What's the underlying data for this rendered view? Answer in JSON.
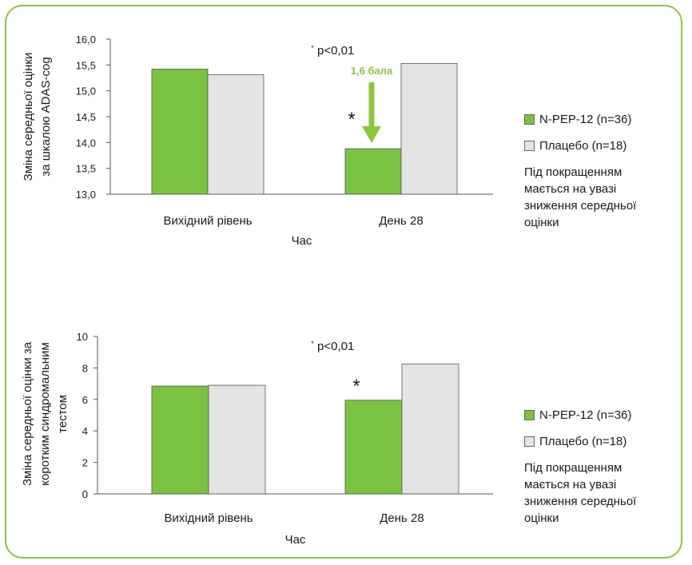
{
  "colors": {
    "border": "#8cc63f",
    "green": "#7cc242",
    "gray": "#e4e4e6",
    "arrow": "#8dc63f"
  },
  "chart_data": [
    {
      "type": "bar",
      "categories": [
        "Вихідний рівень",
        "День 28"
      ],
      "series": [
        {
          "name": "N-PEP-12 (n=36)",
          "values": [
            15.42,
            13.88
          ]
        },
        {
          "name": "Плацебо (n=18)",
          "values": [
            15.31,
            15.53
          ]
        }
      ],
      "ylim": [
        13.0,
        16.0
      ],
      "yticks": [
        "13,0",
        "13,5",
        "14,0",
        "14,5",
        "15,0",
        "15,5",
        "16,0"
      ],
      "ylabel_lines": [
        "Зміна середньої оцінки",
        "за шкалою ADAS-cog"
      ],
      "xlabel": "Час",
      "annotations": {
        "sig_mark": "*",
        "sig_text": "p<0,01",
        "star": "*",
        "arrow_label": "1,6 бала"
      },
      "legend": {
        "items": [
          "N-PEP-12 (n=36)",
          "Плацебо (n=18)"
        ],
        "note": "Під покращенням мається на увазі зниження середньої оцінки"
      }
    },
    {
      "type": "bar",
      "categories": [
        "Вихідний рівень",
        "День 28"
      ],
      "series": [
        {
          "name": "N-PEP-12 (n=36)",
          "values": [
            6.85,
            5.95
          ]
        },
        {
          "name": "Плацебо (n=18)",
          "values": [
            6.9,
            8.25
          ]
        }
      ],
      "ylim": [
        0,
        10
      ],
      "yticks": [
        "0",
        "2",
        "4",
        "6",
        "8",
        "10"
      ],
      "ylabel_lines": [
        "Зміна середньої оцінки за",
        "коротким синдромальним",
        "тестом"
      ],
      "xlabel": "Час",
      "annotations": {
        "sig_mark": "*",
        "sig_text": "p<0,01",
        "star": "*"
      },
      "legend": {
        "items": [
          "N-PEP-12 (n=36)",
          "Плацебо (n=18)"
        ],
        "note": "Під покращенням мається на увазі зниження середньої оцінки"
      }
    }
  ]
}
